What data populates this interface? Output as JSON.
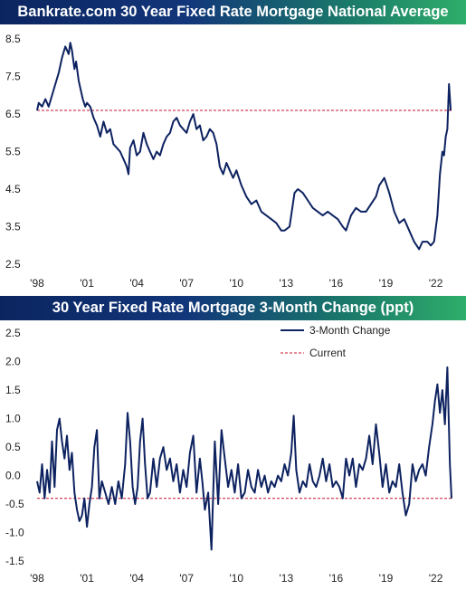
{
  "chart_data": [
    {
      "type": "line",
      "title": "Bankrate.com 30 Year Fixed Rate Mortgage National Average",
      "xlabel": "",
      "ylabel": "",
      "x_tick_labels": [
        "'98",
        "'01",
        "'04",
        "'07",
        "'10",
        "'13",
        "'16",
        "'19",
        "'22"
      ],
      "x_ticks_year": [
        1998,
        2001,
        2004,
        2007,
        2010,
        2013,
        2016,
        2019,
        2022
      ],
      "y_ticks": [
        2.5,
        3.5,
        4.5,
        5.5,
        6.5,
        7.5,
        8.5
      ],
      "ylim": [
        2.5,
        8.6
      ],
      "xlim": [
        1998.0,
        2022.95
      ],
      "grid": false,
      "colors": {
        "line": "#0d2260",
        "reference": "#c8102e"
      },
      "reference_line": {
        "value": 6.6,
        "style": "dashed"
      },
      "series": [
        {
          "x": [
            1998.0,
            1998.1,
            1998.3,
            1998.5,
            1998.7,
            1998.9,
            1999.1,
            1999.3,
            1999.5,
            1999.7,
            1999.9,
            2000.0,
            2000.1,
            2000.25,
            2000.35,
            2000.5,
            2000.6,
            2000.75,
            2000.9,
            2001.0,
            2001.2,
            2001.4,
            2001.6,
            2001.8,
            2002.0,
            2002.2,
            2002.4,
            2002.6,
            2002.8,
            2003.0,
            2003.2,
            2003.4,
            2003.5,
            2003.6,
            2003.8,
            2004.0,
            2004.2,
            2004.4,
            2004.6,
            2004.8,
            2005.0,
            2005.2,
            2005.4,
            2005.6,
            2005.8,
            2006.0,
            2006.2,
            2006.4,
            2006.6,
            2006.8,
            2007.0,
            2007.2,
            2007.4,
            2007.6,
            2007.8,
            2008.0,
            2008.2,
            2008.4,
            2008.6,
            2008.8,
            2009.0,
            2009.2,
            2009.4,
            2009.6,
            2009.8,
            2010.0,
            2010.3,
            2010.6,
            2010.9,
            2011.2,
            2011.5,
            2011.8,
            2012.1,
            2012.4,
            2012.7,
            2012.9,
            2013.2,
            2013.5,
            2013.7,
            2014.0,
            2014.3,
            2014.6,
            2014.9,
            2015.2,
            2015.5,
            2015.8,
            2016.1,
            2016.4,
            2016.6,
            2016.9,
            2017.2,
            2017.5,
            2017.8,
            2018.1,
            2018.4,
            2018.6,
            2018.9,
            2019.2,
            2019.5,
            2019.8,
            2020.1,
            2020.4,
            2020.7,
            2021.0,
            2021.2,
            2021.5,
            2021.7,
            2021.9,
            2022.1,
            2022.25,
            2022.4,
            2022.5,
            2022.6,
            2022.7,
            2022.8,
            2022.9
          ],
          "values": [
            6.6,
            6.8,
            6.7,
            6.9,
            6.7,
            7.0,
            7.3,
            7.6,
            8.0,
            8.3,
            8.1,
            8.4,
            8.2,
            7.7,
            7.9,
            7.4,
            7.2,
            6.9,
            6.7,
            6.8,
            6.7,
            6.4,
            6.2,
            5.9,
            6.3,
            6.0,
            6.1,
            5.7,
            5.6,
            5.5,
            5.3,
            5.1,
            4.9,
            5.6,
            5.8,
            5.4,
            5.5,
            6.0,
            5.7,
            5.5,
            5.3,
            5.5,
            5.4,
            5.7,
            5.9,
            6.0,
            6.3,
            6.4,
            6.2,
            6.1,
            6.0,
            6.3,
            6.5,
            6.1,
            6.2,
            5.8,
            5.9,
            6.1,
            6.0,
            5.7,
            5.1,
            4.9,
            5.2,
            5.0,
            4.8,
            5.0,
            4.6,
            4.3,
            4.1,
            4.2,
            3.9,
            3.8,
            3.7,
            3.6,
            3.4,
            3.4,
            3.5,
            4.4,
            4.5,
            4.4,
            4.2,
            4.0,
            3.9,
            3.8,
            3.9,
            3.8,
            3.7,
            3.5,
            3.4,
            3.8,
            4.0,
            3.9,
            3.9,
            4.1,
            4.3,
            4.6,
            4.8,
            4.4,
            3.9,
            3.6,
            3.7,
            3.4,
            3.1,
            2.9,
            3.1,
            3.1,
            3.0,
            3.1,
            3.8,
            4.9,
            5.5,
            5.4,
            5.9,
            6.1,
            7.3,
            6.6
          ],
          "color": "#0d2260"
        }
      ]
    },
    {
      "type": "line",
      "title": "30 Year Fixed Rate Mortgage 3-Month Change (ppt)",
      "xlabel": "",
      "ylabel": "",
      "x_tick_labels": [
        "'98",
        "'01",
        "'04",
        "'07",
        "'10",
        "'13",
        "'16",
        "'19",
        "'22"
      ],
      "x_ticks_year": [
        1998,
        2001,
        2004,
        2007,
        2010,
        2013,
        2016,
        2019,
        2022
      ],
      "y_ticks": [
        -1.5,
        -1.0,
        -0.5,
        0.0,
        0.5,
        1.0,
        1.5,
        2.0,
        2.5
      ],
      "ylim": [
        -1.5,
        2.55
      ],
      "xlim": [
        1998.0,
        2022.95
      ],
      "grid": false,
      "legend_position": "top-right",
      "colors": {
        "line": "#0d2260",
        "reference": "#c8102e"
      },
      "reference_line": {
        "value": -0.4,
        "style": "dashed",
        "name": "Current"
      },
      "series": [
        {
          "name": "3-Month Change",
          "x": [
            1998.0,
            1998.15,
            1998.3,
            1998.45,
            1998.6,
            1998.75,
            1998.9,
            1999.05,
            1999.2,
            1999.35,
            1999.5,
            1999.65,
            1999.8,
            1999.95,
            2000.1,
            2000.25,
            2000.4,
            2000.55,
            2000.7,
            2000.85,
            2001.0,
            2001.15,
            2001.3,
            2001.45,
            2001.6,
            2001.75,
            2001.9,
            2002.1,
            2002.3,
            2002.5,
            2002.7,
            2002.9,
            2003.1,
            2003.3,
            2003.45,
            2003.6,
            2003.75,
            2003.9,
            2004.05,
            2004.2,
            2004.35,
            2004.5,
            2004.65,
            2004.8,
            2005.0,
            2005.2,
            2005.4,
            2005.6,
            2005.8,
            2006.0,
            2006.2,
            2006.4,
            2006.6,
            2006.8,
            2007.0,
            2007.2,
            2007.4,
            2007.6,
            2007.8,
            2007.95,
            2008.1,
            2008.3,
            2008.5,
            2008.7,
            2008.9,
            2009.1,
            2009.3,
            2009.5,
            2009.7,
            2009.9,
            2010.1,
            2010.3,
            2010.5,
            2010.7,
            2010.9,
            2011.1,
            2011.3,
            2011.5,
            2011.7,
            2011.9,
            2012.1,
            2012.3,
            2012.5,
            2012.7,
            2012.9,
            2013.1,
            2013.3,
            2013.45,
            2013.6,
            2013.8,
            2014.0,
            2014.2,
            2014.4,
            2014.6,
            2014.8,
            2015.0,
            2015.2,
            2015.4,
            2015.6,
            2015.8,
            2016.0,
            2016.2,
            2016.4,
            2016.6,
            2016.8,
            2017.0,
            2017.2,
            2017.4,
            2017.6,
            2017.8,
            2018.0,
            2018.2,
            2018.4,
            2018.6,
            2018.8,
            2019.0,
            2019.2,
            2019.4,
            2019.6,
            2019.8,
            2020.0,
            2020.2,
            2020.4,
            2020.6,
            2020.8,
            2021.0,
            2021.2,
            2021.4,
            2021.6,
            2021.8,
            2021.95,
            2022.1,
            2022.25,
            2022.4,
            2022.55,
            2022.7,
            2022.85,
            2022.95
          ],
          "values": [
            -0.1,
            -0.3,
            0.2,
            -0.4,
            0.1,
            -0.3,
            0.6,
            -0.2,
            0.8,
            1.0,
            0.6,
            0.3,
            0.7,
            0.1,
            0.4,
            -0.3,
            -0.6,
            -0.8,
            -0.7,
            -0.4,
            -0.9,
            -0.5,
            -0.2,
            0.5,
            0.8,
            -0.4,
            -0.1,
            -0.3,
            -0.5,
            -0.2,
            -0.5,
            -0.1,
            -0.4,
            0.2,
            1.1,
            0.6,
            -0.2,
            -0.5,
            -0.2,
            0.6,
            1.0,
            0.2,
            -0.4,
            -0.3,
            0.3,
            -0.2,
            0.3,
            0.5,
            0.1,
            0.3,
            -0.1,
            0.2,
            -0.3,
            0.1,
            -0.2,
            0.4,
            0.7,
            -0.3,
            0.3,
            -0.1,
            -0.6,
            -0.3,
            -1.3,
            0.6,
            -0.5,
            0.8,
            0.3,
            -0.2,
            0.1,
            -0.3,
            0.2,
            -0.4,
            -0.3,
            0.1,
            -0.2,
            -0.3,
            0.1,
            -0.2,
            0.0,
            -0.3,
            -0.1,
            -0.2,
            0.0,
            -0.1,
            0.2,
            0.0,
            0.4,
            1.05,
            0.1,
            -0.3,
            -0.1,
            -0.2,
            0.2,
            -0.1,
            -0.2,
            0.0,
            0.3,
            -0.1,
            0.2,
            -0.2,
            -0.1,
            -0.2,
            -0.4,
            0.3,
            0.0,
            0.3,
            -0.2,
            0.2,
            0.1,
            0.3,
            0.7,
            0.2,
            0.9,
            0.4,
            -0.2,
            0.2,
            -0.3,
            -0.1,
            -0.2,
            0.2,
            -0.3,
            -0.7,
            -0.5,
            0.2,
            -0.1,
            0.1,
            0.2,
            0.0,
            0.5,
            0.9,
            1.3,
            1.6,
            1.1,
            1.5,
            0.9,
            1.9,
            0.2,
            -0.4
          ],
          "color": "#0d2260"
        }
      ]
    }
  ]
}
